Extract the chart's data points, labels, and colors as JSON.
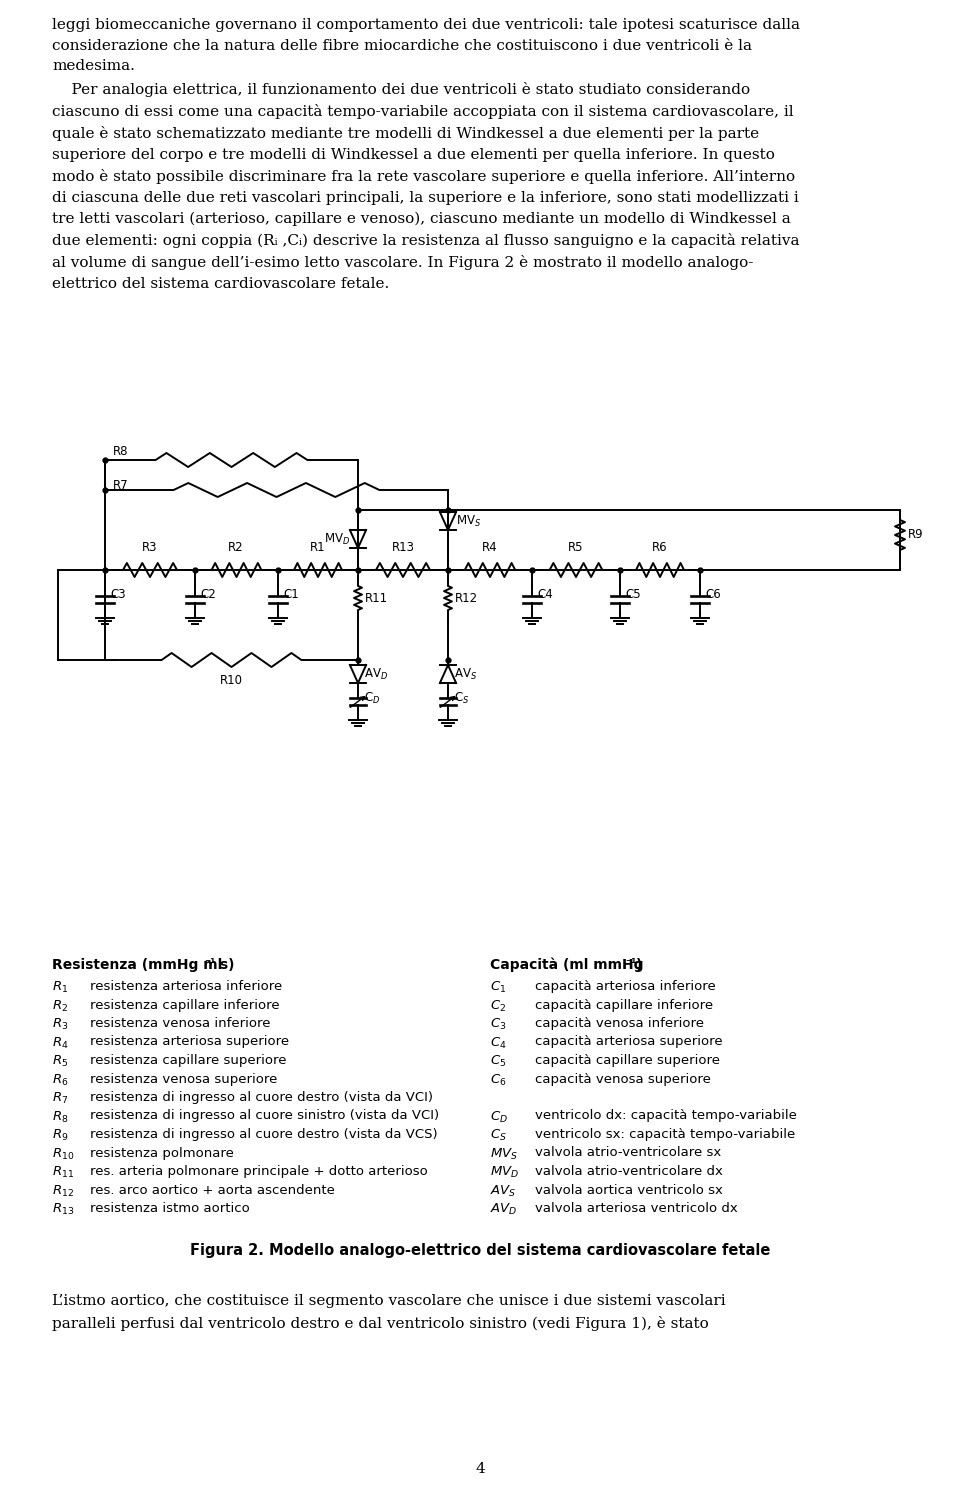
{
  "text_body1": "leggi biomeccaniche governano il comportamento dei due ventricoli: tale ipotesi scaturisce dalla\nconsiderazione che la natura delle fibre miocardiche che costituiscono i due ventricoli è la\nmedesima.",
  "text_body2_indent": "    Per analogia elettrica, il funzionamento dei due ventricoli è stato studiato considerando\nciascuno di essi come una capacità tempo-variabile accoppiata con il sistema cardiovascolare, il\nquale è stato schematizzato mediante tre modelli di Windkessel a due elementi per la parte\nsuperiore del corpo e tre modelli di Windkessel a due elementi per quella inferiore. In questo\nmodo è stato possibile discriminare fra la rete vascolare superiore e quella inferiore. All’interno\ndi ciascuna delle due reti vascolari principali, la superiore e la inferiore, sono stati modellizzati i\ntre letti vascolari (arterioso, capillare e venoso), ciascuno mediante un modello di Windkessel a\ndue elementi: ogni coppia (Rᵢ ,Cᵢ) descrive la resistenza al flusso sanguigno e la capacità relativa\nal volume di sangue dell’i-esimo letto vascolare. In Figura 2 è mostrato il modello analogo-\nelettrico del sistema cardiovascolare fetale.",
  "figure_caption": "Figura 2. Modello analogo-elettrico del sistema cardiovascolare fetale",
  "text_bottom": "L’istmo aortico, che costituisce il segmento vascolare che unisce i due sistemi vascolari\nparalleli perfusi dal ventricolo destro e dal ventricolo sinistro (vedi Figura 1), è stato",
  "page_number": "4",
  "legend_left_title": "Resistenza (mmHg ml⁻¹ s)",
  "legend_right_title": "Capacità (ml mmHg⁻¹)",
  "left_symbols": [
    "R_1",
    "R_2",
    "R_3",
    "R_4",
    "R_5",
    "R_6",
    "R_7",
    "R_8",
    "R_9",
    "R_{10}",
    "R_{11}",
    "R_{12}",
    "R_{13}"
  ],
  "left_descs": [
    "resistenza arteriosa inferiore",
    "resistenza capillare inferiore",
    "resistenza venosa inferiore",
    "resistenza arteriosa superiore",
    "resistenza capillare superiore",
    "resistenza venosa superiore",
    "resistenza di ingresso al cuore destro (vista da VCI)",
    "resistenza di ingresso al cuore sinistro (vista da VCI)",
    "resistenza di ingresso al cuore destro (vista da VCS)",
    "resistenza polmonare",
    "res. arteria polmonare principale + dotto arterioso",
    "res. arco aortico + aorta ascendente",
    "resistenza istmo aortico"
  ],
  "right_symbols": [
    "C_1",
    "C_2",
    "C_3",
    "C_4",
    "C_5",
    "C_6",
    "",
    "C_D",
    "C_S",
    "MV_S",
    "MV_D",
    "AV_S",
    "AV_D"
  ],
  "right_descs": [
    "capacità arteriosa inferiore",
    "capacità capillare inferiore",
    "capacità venosa inferiore",
    "capacità arteriosa superiore",
    "capacità capillare superiore",
    "capacità venosa superiore",
    "",
    "ventricolo dx: capacità tempo-variabile",
    "ventricolo sx: capacità tempo-variabile",
    "valvola atrio-ventricolare sx",
    "valvola atrio-ventricolare dx",
    "valvola aortica ventricolo sx",
    "valvola arteriosa ventricolo dx"
  ]
}
